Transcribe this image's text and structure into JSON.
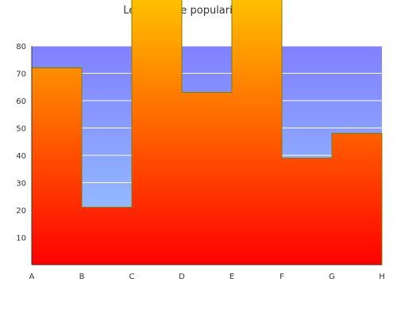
{
  "chart_data": {
    "type": "area",
    "title": "Leflunomide popularity, ages",
    "xlabel": "",
    "ylabel": "",
    "x_ticks": [
      "A",
      "B",
      "C",
      "D",
      "E",
      "F",
      "G",
      "H"
    ],
    "y_ticks": [
      10,
      20,
      30,
      40,
      50,
      60,
      70,
      80
    ],
    "ylim": [
      0,
      80
    ],
    "grid": true,
    "legend": "none",
    "step_values": [
      72,
      21,
      100,
      63,
      100,
      39,
      48
    ],
    "colors": {
      "plot_top": "#8080ff",
      "plot_bottom": "#99ccff",
      "fill_top": "#ffc000",
      "fill_bottom": "#ff0000",
      "outline": "#808000",
      "grid": "#ffffff",
      "axis": "#333333"
    }
  }
}
